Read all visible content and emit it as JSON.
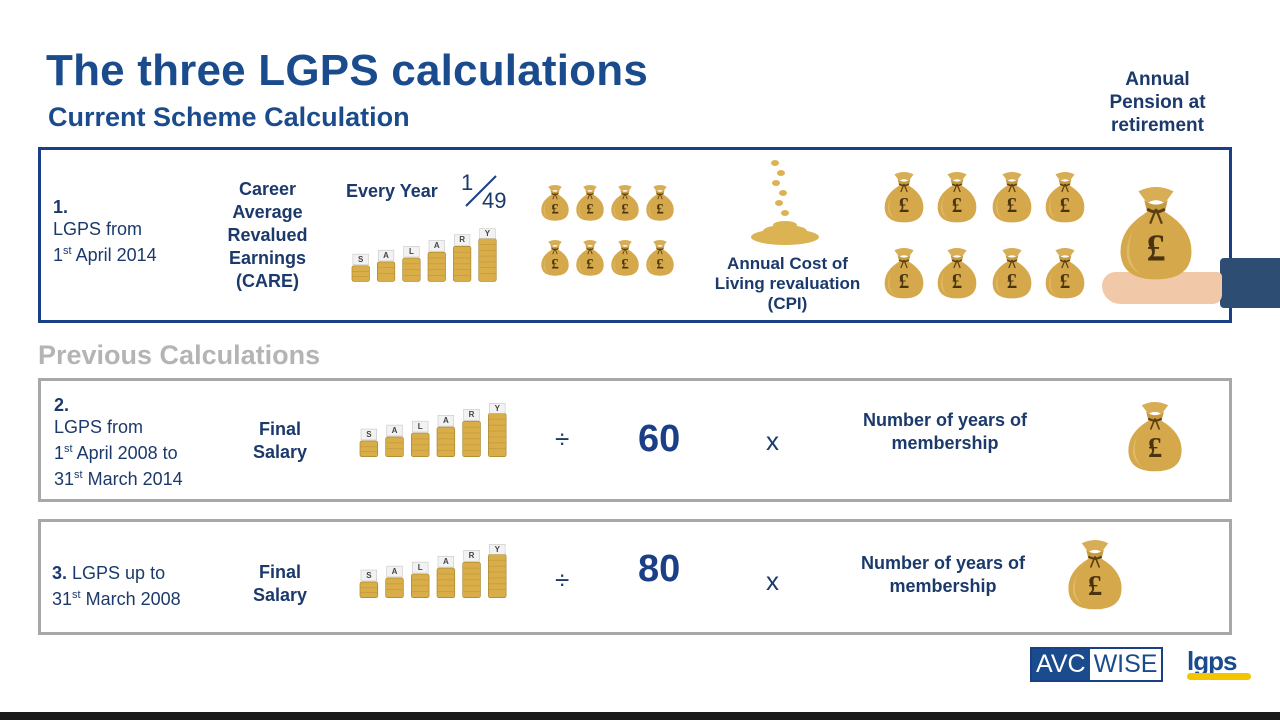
{
  "header": {
    "title": "The three LGPS calculations",
    "subtitle": "Current Scheme Calculation",
    "annual_pension_label": [
      "Annual",
      "Pension at",
      "retirement"
    ]
  },
  "current": {
    "number": "1.",
    "scheme_line1": "LGPS from",
    "scheme_date_day": "1",
    "scheme_date_sup": "st",
    "scheme_date_rest": " April 2014",
    "care_lines": [
      "Career",
      "Average",
      "Revalued",
      "Earnings",
      "(CARE)"
    ],
    "every_year": "Every Year",
    "fraction_num": "1",
    "fraction_den": "49",
    "cpi_lines": [
      "Annual Cost of",
      "Living revaluation",
      "(CPI)"
    ]
  },
  "previous": {
    "heading": "Previous Calculations",
    "rows": [
      {
        "number": "2.",
        "line1": "LGPS from",
        "date1_day": "1",
        "date1_sup": "st",
        "date1_rest": " April 2008 to",
        "date2_day": "31",
        "date2_sup": "st",
        "date2_rest": " March 2014",
        "salary_lines": [
          "Final",
          "Salary"
        ],
        "divide": "÷",
        "divisor": "60",
        "times": "x",
        "years_lines": [
          "Number of years of",
          "membership"
        ]
      },
      {
        "number": "3.",
        "line1": " LGPS up to",
        "date1_day": "31",
        "date1_sup": "st",
        "date1_rest": " March 2008",
        "salary_lines": [
          "Final",
          "Salary"
        ],
        "divide": "÷",
        "divisor": "80",
        "times": "x",
        "years_lines": [
          "Number of years of",
          "membership"
        ]
      }
    ]
  },
  "salary_letters": [
    "S",
    "A",
    "L",
    "A",
    "R",
    "Y"
  ],
  "pound_symbol": "£",
  "logos": {
    "avc_part1": "AVC",
    "avc_part2": "WISE",
    "lgps": "lgps"
  },
  "colors": {
    "navy": "#1a3f86",
    "grey_border": "#a8a8a8",
    "bag_gold": "#d4a84b",
    "coin_gold": "#d9ad48"
  }
}
